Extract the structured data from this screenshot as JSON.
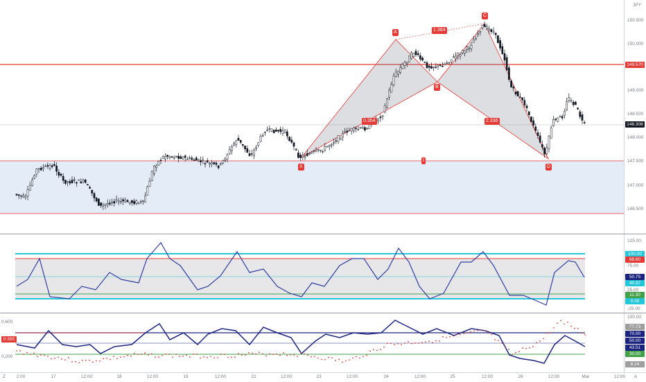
{
  "currency": "JPY",
  "price_pane": {
    "axis_ticks": [
      "150.500",
      "150.000",
      "149.000",
      "148.500",
      "148.000",
      "147.500",
      "147.000",
      "146.500"
    ],
    "resistance_label": "149.570",
    "current_price_label": "148.308",
    "pattern_points": {
      "X": "X",
      "A": "A",
      "B": "B",
      "C": "C",
      "D": "D"
    },
    "ratios": {
      "ab": "0.354",
      "ac": "1.364",
      "bd": "2.336"
    },
    "zone_marker": "I"
  },
  "osc1": {
    "axis_ticks": [
      "125.00",
      "75.00",
      "25.00",
      "-25.00"
    ],
    "labels": [
      "100.00",
      "88.60",
      "50.75",
      "40.37",
      "11.30",
      "0.00"
    ],
    "label_colors": [
      "#26c6da",
      "#e53935",
      "#1a237e",
      "#26c6da",
      "#43a047",
      "#26c6da"
    ]
  },
  "osc2": {
    "left_ticks": [
      "0.600",
      "0.395",
      "0.200"
    ],
    "axis_ticks": [
      "100.00",
      "77.73",
      "70.00",
      "50.00",
      "43.51",
      "30.00",
      "8.24"
    ],
    "label_colors": [
      "#9e9e9e",
      "#9e9e9e",
      "#1a237e",
      "#1a237e",
      "#1a237e",
      "#43a047",
      "#9e9e9e"
    ]
  },
  "time_axis": [
    "Z",
    "2:00",
    "17",
    "12:00",
    "18",
    "12:00",
    "19",
    "12:00",
    "22",
    "12:00",
    "23",
    "12:00",
    "24",
    "12:00",
    "25",
    "12:00",
    "26",
    "12:00",
    "Mar",
    "12:00",
    "A"
  ],
  "colors": {
    "up": "#ffffff",
    "down": "#131722",
    "resistance": "#e53935",
    "zone": "#e3ecf7",
    "harmonic": "#e53935",
    "osc_line": "#303f9f",
    "cyan": "#26c6da",
    "green": "#43a047"
  }
}
